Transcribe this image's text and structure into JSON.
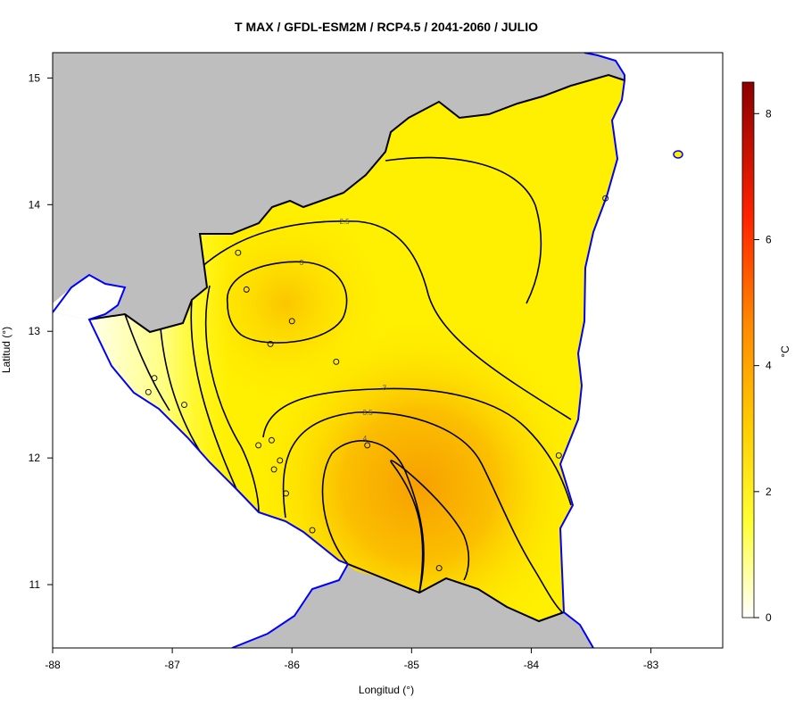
{
  "title": "T MAX / GFDL-ESM2M / RCP4.5 / 2041-2060 / JULIO",
  "x_axis": {
    "label": "Longitud (°)",
    "ticks": [
      -88,
      -87,
      -86,
      -85,
      -84,
      -83
    ],
    "range": [
      -88,
      -82.4
    ]
  },
  "y_axis": {
    "label": "Latitud (°)",
    "ticks": [
      11,
      12,
      13,
      14,
      15
    ],
    "range": [
      10.5,
      15.2
    ]
  },
  "colorbar": {
    "label": "°C",
    "ticks": [
      0,
      2,
      4,
      6,
      8
    ],
    "range": [
      0,
      8.5
    ],
    "colors": [
      "#ffffff",
      "#ffff33",
      "#ffcc00",
      "#ff8800",
      "#ff2200",
      "#8b0000"
    ]
  },
  "colors": {
    "land_outside": "#bebebe",
    "water": "#b9bfd8",
    "coastline": "#0000ff",
    "border": "#000000",
    "contour": "#000000"
  },
  "contour_labels": [
    "2.5",
    "3",
    "3",
    "3.5",
    "4"
  ],
  "stations": [
    {
      "lon": -86.45,
      "lat": 13.62
    },
    {
      "lon": -86.38,
      "lat": 13.33
    },
    {
      "lon": -86.0,
      "lat": 13.08
    },
    {
      "lon": -86.18,
      "lat": 12.9
    },
    {
      "lon": -85.63,
      "lat": 12.76
    },
    {
      "lon": -87.15,
      "lat": 12.63
    },
    {
      "lon": -87.2,
      "lat": 12.52
    },
    {
      "lon": -86.9,
      "lat": 12.42
    },
    {
      "lon": -86.28,
      "lat": 12.1
    },
    {
      "lon": -86.17,
      "lat": 12.14
    },
    {
      "lon": -86.1,
      "lat": 11.98
    },
    {
      "lon": -86.15,
      "lat": 11.91
    },
    {
      "lon": -86.05,
      "lat": 11.72
    },
    {
      "lon": -85.37,
      "lat": 12.1
    },
    {
      "lon": -85.83,
      "lat": 11.43
    },
    {
      "lon": -84.77,
      "lat": 11.13
    },
    {
      "lon": -83.77,
      "lat": 12.02
    },
    {
      "lon": -83.38,
      "lat": 14.05
    }
  ]
}
